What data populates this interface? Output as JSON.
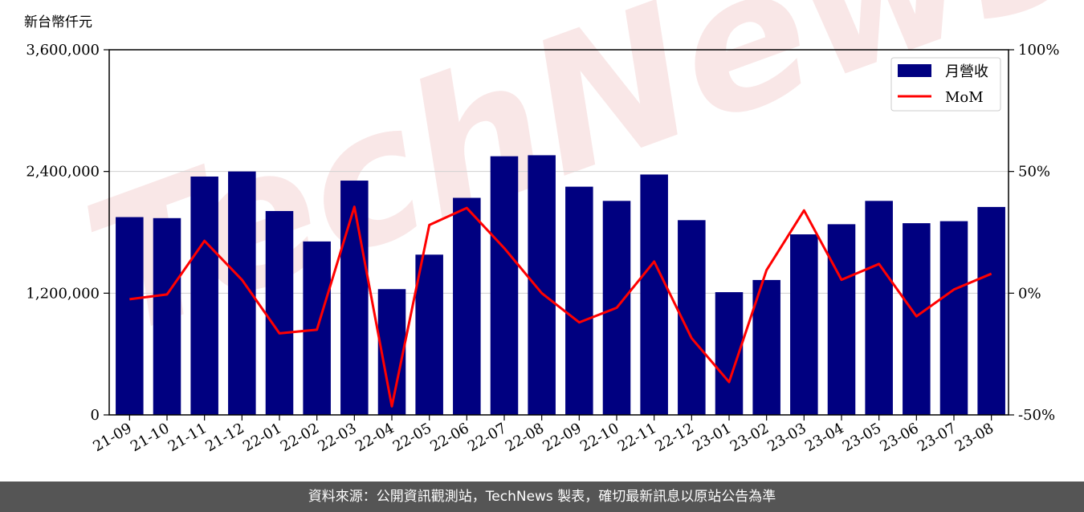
{
  "chart_data": {
    "type": "bar",
    "unit_label": "新台幣仟元",
    "categories": [
      "21-09",
      "21-10",
      "21-11",
      "21-12",
      "22-01",
      "22-02",
      "22-03",
      "22-04",
      "22-05",
      "22-06",
      "22-07",
      "22-08",
      "22-09",
      "22-10",
      "22-11",
      "22-12",
      "23-01",
      "23-02",
      "23-03",
      "23-04",
      "23-05",
      "23-06",
      "23-07",
      "23-08"
    ],
    "series": [
      {
        "name": "月營收",
        "type": "bar",
        "axis": "left",
        "color": "#000080",
        "values": [
          1950000,
          1940000,
          2350000,
          2400000,
          2010000,
          1710000,
          2310000,
          1240000,
          1580000,
          2140000,
          2550000,
          2560000,
          2250000,
          2110000,
          2370000,
          1920000,
          1210000,
          1330000,
          1780000,
          1880000,
          2110000,
          1890000,
          1910000,
          2050000
        ]
      },
      {
        "name": "MoM",
        "type": "line",
        "axis": "right",
        "color": "#ff0000",
        "values": [
          -2.5,
          -0.5,
          21.5,
          5.5,
          -16.5,
          -15,
          35.5,
          -46.5,
          28,
          35,
          18.5,
          0,
          -12,
          -6,
          13,
          -18.5,
          -36.5,
          9.5,
          34,
          5.5,
          12,
          -9.5,
          1.5,
          8
        ]
      }
    ],
    "y_left": {
      "ylim": [
        0,
        3600000
      ],
      "ticks": [
        "0",
        "1,200,000",
        "2,400,000",
        "3,600,000"
      ],
      "tick_values": [
        0,
        1200000,
        2400000,
        3600000
      ]
    },
    "y_right": {
      "ylim": [
        -50,
        100
      ],
      "ticks": [
        "-50%",
        "0%",
        "50%",
        "100%"
      ],
      "tick_values": [
        -50,
        0,
        50,
        100
      ]
    },
    "grid": "horizontal",
    "legend_position": "top-right"
  },
  "watermark_text": "TechNews",
  "footer_text": "資料來源：公開資訊觀測站，TechNews 製表，確切最新訊息以原站公告為準"
}
